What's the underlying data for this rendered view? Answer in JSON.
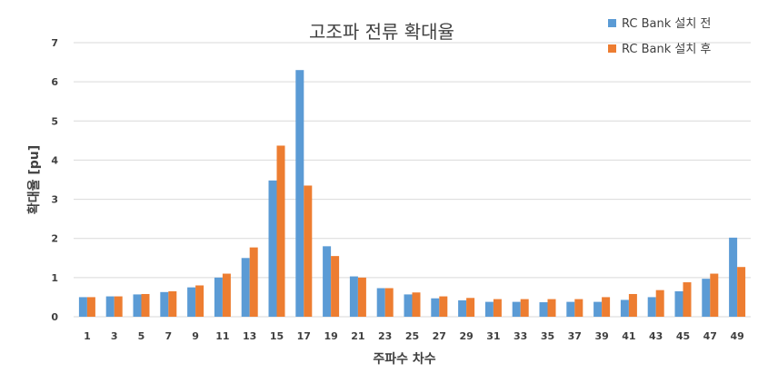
{
  "chart_data": {
    "type": "bar",
    "title": "고조파 전류 확대율",
    "xlabel": "주파수 차수",
    "ylabel": "확대율 [pu]",
    "ylim": [
      0,
      7
    ],
    "yticks": [
      "0",
      "1",
      "2",
      "3",
      "4",
      "5",
      "6",
      "7"
    ],
    "grid": true,
    "legend_position": "top-right",
    "categories": [
      "1",
      "3",
      "5",
      "7",
      "9",
      "11",
      "13",
      "15",
      "17",
      "19",
      "21",
      "23",
      "25",
      "27",
      "29",
      "31",
      "33",
      "35",
      "37",
      "39",
      "41",
      "43",
      "45",
      "47",
      "49"
    ],
    "series": [
      {
        "name": "RC Bank 설치 전",
        "color": "#5b9bd5",
        "values": [
          0.5,
          0.52,
          0.57,
          0.63,
          0.75,
          1.0,
          1.5,
          3.48,
          6.3,
          1.8,
          1.03,
          0.73,
          0.57,
          0.47,
          0.42,
          0.38,
          0.38,
          0.37,
          0.38,
          0.38,
          0.43,
          0.5,
          0.65,
          0.97,
          2.02
        ]
      },
      {
        "name": "RC Bank 설치 후",
        "color": "#ed7d31",
        "values": [
          0.5,
          0.52,
          0.58,
          0.65,
          0.8,
          1.1,
          1.77,
          4.37,
          3.35,
          1.55,
          1.0,
          0.73,
          0.62,
          0.52,
          0.48,
          0.45,
          0.45,
          0.45,
          0.45,
          0.5,
          0.58,
          0.68,
          0.88,
          1.1,
          1.27
        ]
      }
    ]
  }
}
